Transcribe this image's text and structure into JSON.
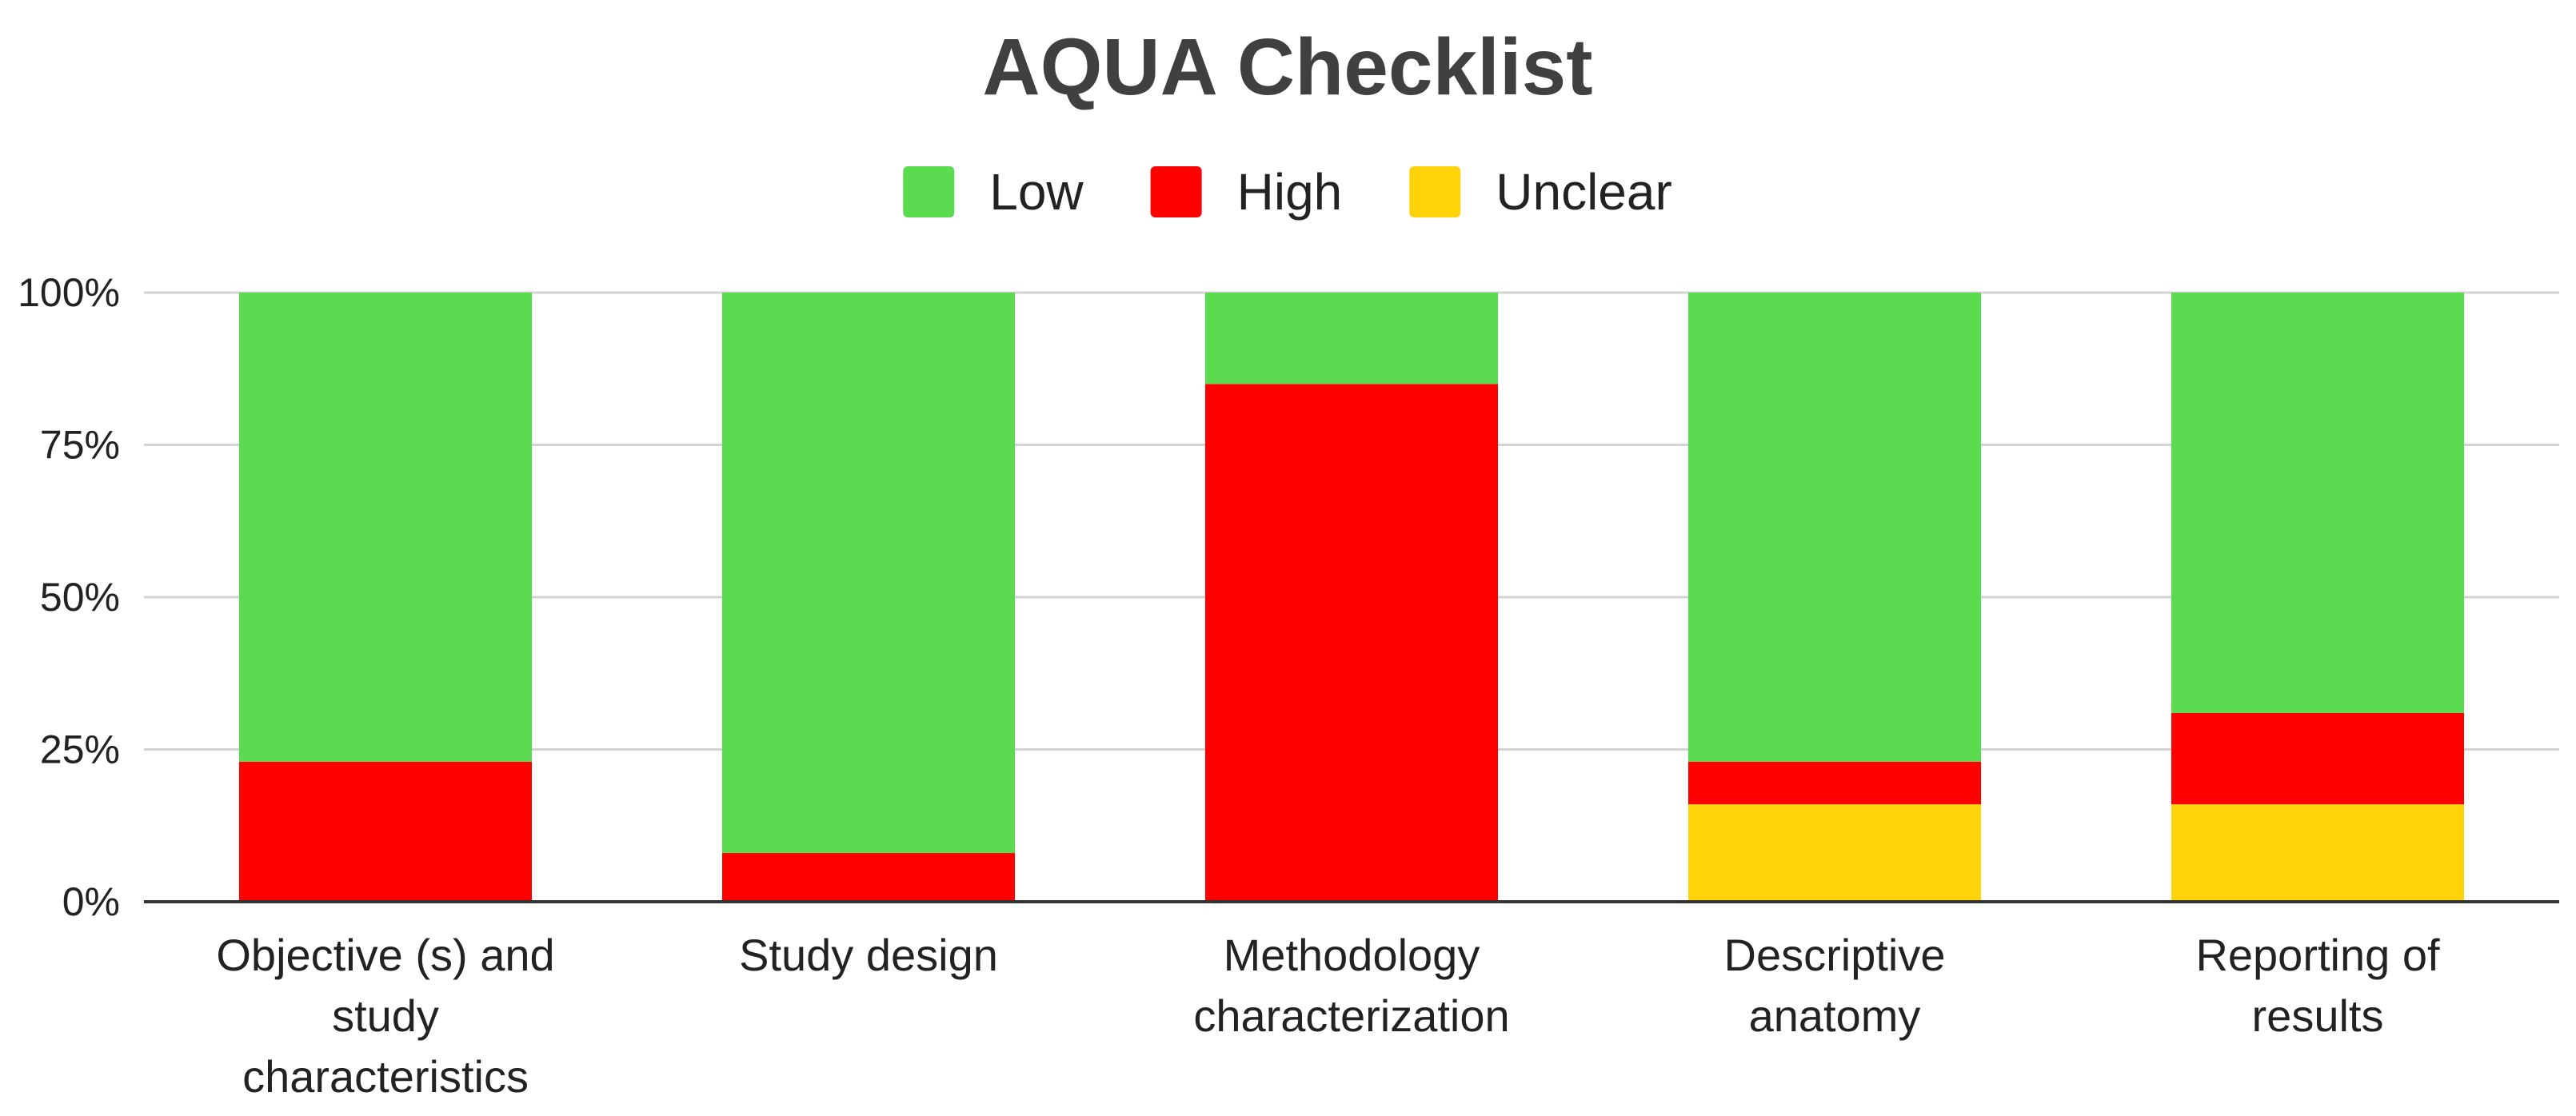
{
  "chart_data": {
    "type": "bar",
    "stacked": true,
    "normalized": true,
    "title": "AQUA Checklist",
    "xlabel": "",
    "ylabel": "",
    "ylim": [
      0,
      100
    ],
    "y_ticks": [
      "0%",
      "25%",
      "50%",
      "75%",
      "100%"
    ],
    "y_tick_values": [
      0,
      25,
      50,
      75,
      100
    ],
    "grid": true,
    "legend_position": "top",
    "categories": [
      [
        "Objective (s) and",
        "study",
        "characteristics"
      ],
      [
        "Study design"
      ],
      [
        "Methodology",
        "characterization"
      ],
      [
        "Descriptive",
        "anatomy"
      ],
      [
        "Reporting of",
        "results"
      ]
    ],
    "series": [
      {
        "name": "Low",
        "color": "#5ADB50",
        "values": [
          77,
          92,
          15,
          77,
          69
        ]
      },
      {
        "name": "High",
        "color": "#FF0000",
        "values": [
          23,
          8,
          85,
          7,
          15
        ]
      },
      {
        "name": "Unclear",
        "color": "#FFD30A",
        "values": [
          0,
          0,
          0,
          16,
          16
        ]
      }
    ],
    "stack_order_bottom_to_top": [
      "Unclear",
      "High",
      "Low"
    ]
  }
}
